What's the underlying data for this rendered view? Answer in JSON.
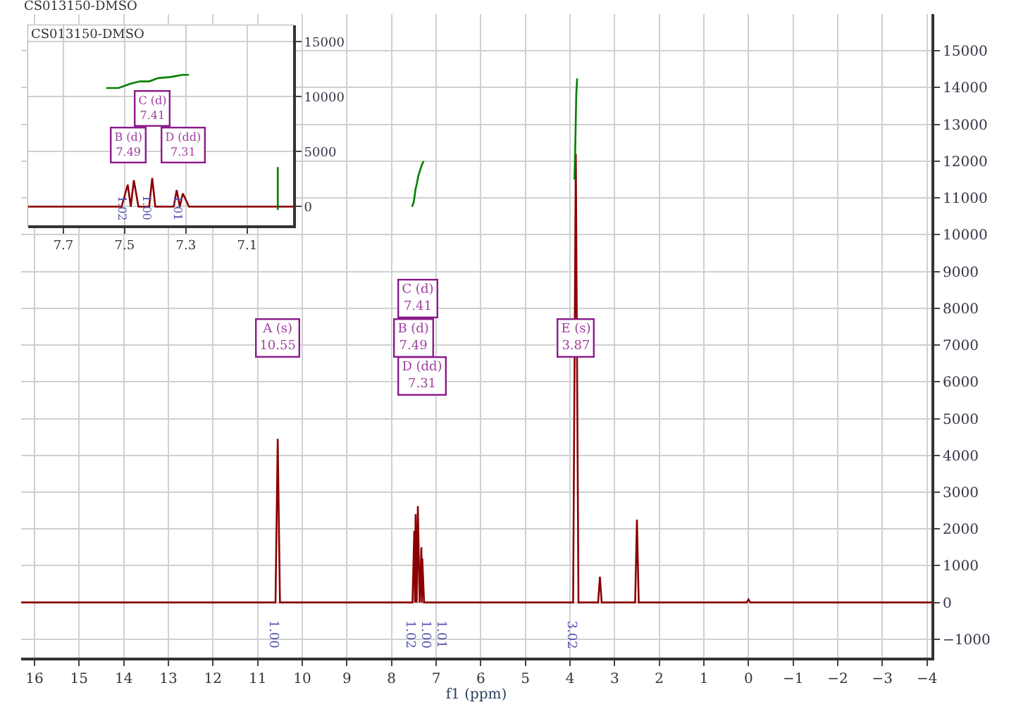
{
  "chart_data": [
    {
      "type": "line",
      "title": "CS013150-DMSO",
      "xlabel": "f1 (ppm)",
      "xlim": [
        16.3,
        -4.1
      ],
      "ylim": [
        -1500,
        16000
      ],
      "xticks": [
        16,
        15,
        14,
        13,
        12,
        11,
        10,
        9,
        8,
        7,
        6,
        5,
        4,
        3,
        2,
        1,
        0,
        -1,
        -2,
        -3,
        -4
      ],
      "yticks": [
        -1000,
        0,
        1000,
        2000,
        3000,
        4000,
        5000,
        6000,
        7000,
        8000,
        9000,
        10000,
        11000,
        12000,
        13000,
        14000,
        15000
      ],
      "grid": true,
      "series": [
        {
          "color": "#8b0000",
          "x": [
            16.3,
            10.6,
            10.55,
            10.5,
            7.53,
            7.49,
            7.475,
            7.46,
            7.435,
            7.41,
            7.37,
            7.33,
            7.32,
            7.31,
            7.27,
            3.93,
            3.87,
            3.81,
            3.37,
            3.33,
            3.29,
            2.54,
            2.5,
            2.46,
            0.04,
            0,
            -0.04,
            -4.1
          ],
          "values": [
            0,
            0,
            4450,
            0,
            0,
            1950,
            0,
            2400,
            0,
            2620,
            0,
            1500,
            0,
            1200,
            0,
            0,
            12200,
            0,
            0,
            700,
            0,
            0,
            2250,
            0,
            0,
            80,
            0,
            0
          ]
        },
        {
          "color": "#008000",
          "x": [
            7.54,
            7.5,
            7.46,
            7.43,
            7.4,
            7.36,
            7.32,
            7.28,
            5.0,
            3.9,
            3.88,
            3.86,
            3.84
          ],
          "values": [
            10760,
            10900,
            11250,
            11400,
            11600,
            11750,
            11900,
            12000,
            null,
            11500,
            12500,
            13800,
            14250
          ]
        }
      ],
      "annotations": [
        {
          "text": "A (s)\n10.55",
          "x": 10.55,
          "y": 7200
        },
        {
          "text": "B (d)\n7.49",
          "x": 7.49,
          "y": 7200
        },
        {
          "text": "C (d)\n7.41",
          "x": 7.41,
          "y": 8250
        },
        {
          "text": "D (dd)\n7.31",
          "x": 7.31,
          "y": 6150
        },
        {
          "text": "E (s)\n3.87",
          "x": 3.87,
          "y": 7200
        },
        "1.00",
        "1.02",
        "1.00",
        "1.01",
        "3.02"
      ]
    },
    {
      "type": "line",
      "title": "CS013150-DMSO",
      "xlim": [
        7.815,
        6.95
      ],
      "ylim": [
        -1700,
        16500
      ],
      "xticks": [
        7.7,
        7.5,
        7.3,
        7.1
      ],
      "yticks": [
        0,
        5000,
        10000,
        15000
      ],
      "grid": true,
      "series": [
        {
          "color": "#8b0000",
          "x": [
            7.815,
            7.51,
            7.49,
            7.48,
            7.47,
            7.455,
            7.42,
            7.41,
            7.4,
            7.34,
            7.33,
            7.32,
            7.31,
            7.29,
            6.95
          ],
          "values": [
            0,
            0,
            2000,
            0,
            2400,
            0,
            0,
            2600,
            0,
            0,
            1500,
            0,
            1200,
            0,
            0
          ]
        },
        {
          "color": "#008000",
          "x": [
            7.56,
            7.52,
            7.48,
            7.45,
            7.42,
            7.39,
            7.35,
            7.31,
            7.29,
            7.1,
            7.0,
            7.0
          ],
          "values": [
            10800,
            10800,
            11200,
            11400,
            11400,
            11700,
            11800,
            12000,
            12000,
            null,
            -300,
            3600
          ]
        }
      ],
      "annotations": [
        {
          "text": "B (d)\n7.49",
          "x": 7.49,
          "y": 5600
        },
        {
          "text": "C (d)\n7.41",
          "x": 7.41,
          "y": 9000
        },
        {
          "text": "D (dd)\n7.31",
          "x": 7.31,
          "y": 5600
        },
        "1.02",
        "1.00",
        "1.01"
      ]
    }
  ]
}
